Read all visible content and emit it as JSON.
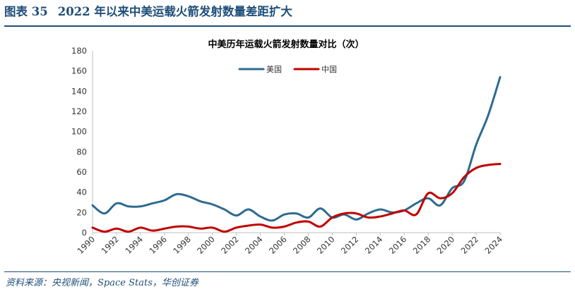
{
  "figure": {
    "number": "图表 35",
    "title": "2022 年以来中美运载火箭发射数量差距扩大",
    "source": "资料来源：央视新闻，Space Stats，华创证券"
  },
  "colors": {
    "accent": "#1f4e79",
    "usa": "#2e6b8f",
    "china": "#c00000"
  },
  "chart_data": {
    "type": "line",
    "title": "中美历年运载火箭发射数量对比（次）",
    "xlabel": "",
    "ylabel": "",
    "ylim": [
      0,
      180
    ],
    "yticks": [
      0,
      20,
      40,
      60,
      80,
      100,
      120,
      140,
      160,
      180
    ],
    "xticks": [
      1990,
      1992,
      1994,
      1996,
      1998,
      2000,
      2002,
      2004,
      2006,
      2008,
      2010,
      2012,
      2014,
      2016,
      2018,
      2020,
      2022,
      2024
    ],
    "grid": false,
    "legend_position": "top-center",
    "x": [
      1990,
      1991,
      1992,
      1993,
      1994,
      1995,
      1996,
      1997,
      1998,
      1999,
      2000,
      2001,
      2002,
      2003,
      2004,
      2005,
      2006,
      2007,
      2008,
      2009,
      2010,
      2011,
      2012,
      2013,
      2014,
      2015,
      2016,
      2017,
      2018,
      2019,
      2020,
      2021,
      2022,
      2023,
      2024
    ],
    "series": [
      {
        "name": "美国",
        "color": "#2e6b8f",
        "values": [
          27,
          19,
          29,
          26,
          26,
          29,
          32,
          38,
          36,
          31,
          28,
          23,
          17,
          23,
          16,
          12,
          18,
          19,
          15,
          24,
          15,
          18,
          13,
          19,
          23,
          20,
          22,
          29,
          34,
          27,
          44,
          51,
          87,
          116,
          154
        ]
      },
      {
        "name": "中国",
        "color": "#c00000",
        "values": [
          5,
          1,
          4,
          1,
          5,
          2,
          4,
          6,
          6,
          4,
          5,
          1,
          5,
          7,
          8,
          5,
          6,
          10,
          11,
          6,
          15,
          19,
          19,
          15,
          16,
          19,
          22,
          18,
          39,
          34,
          39,
          55,
          64,
          67,
          68
        ]
      }
    ]
  }
}
